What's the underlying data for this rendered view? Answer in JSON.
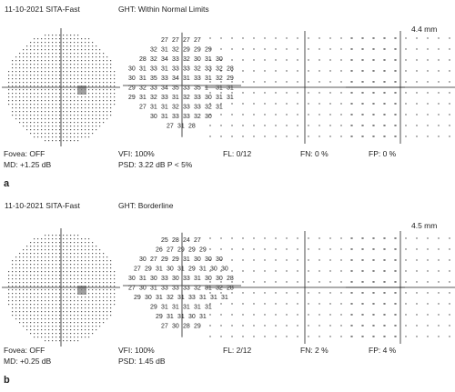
{
  "panels": [
    {
      "label": "a",
      "date_strategy": "11-10-2021 SITA-Fast",
      "ght": "GHT: Within Normal Limits",
      "size": "4.4 mm",
      "fovea": "Fovea: OFF",
      "md": "MD: +1.25 dB",
      "vfi": "VFI: 100%",
      "psd": "PSD: 3.22 dB P < 5%",
      "fl": "FL: 0/12",
      "fn": "FN: 0 %",
      "fp": "FP: 0 %",
      "threshold_rows": [
        [
          "27",
          "27",
          "27",
          "27"
        ],
        [
          "32",
          "31",
          "32",
          "29",
          "29",
          "29"
        ],
        [
          "28",
          "32",
          "34",
          "33",
          "32",
          "30",
          "31",
          "30"
        ],
        [
          "30",
          "31",
          "33",
          "31",
          "33",
          "33",
          "32",
          "33",
          "32",
          "28"
        ],
        [
          "30",
          "31",
          "35",
          "33",
          "34",
          "31",
          "33",
          "31",
          "32",
          "29"
        ],
        [
          "29",
          "32",
          "33",
          "34",
          "35",
          "33",
          "35",
          "1",
          "31",
          "31"
        ],
        [
          "29",
          "31",
          "32",
          "33",
          "31",
          "32",
          "33",
          "30",
          "31",
          "31"
        ],
        [
          "27",
          "31",
          "31",
          "32",
          "33",
          "33",
          "32",
          "31"
        ],
        [
          "30",
          "31",
          "33",
          "33",
          "32",
          "30"
        ],
        [
          "27",
          "31",
          "28"
        ]
      ]
    },
    {
      "label": "b",
      "date_strategy": "11-10-2021 SITA-Fast",
      "ght": "GHT: Borderline",
      "size": "4.5 mm",
      "fovea": "Fovea: OFF",
      "md": "MD: +0.25 dB",
      "vfi": "VFI: 100%",
      "psd": "PSD: 1.45 dB",
      "fl": "FL: 2/12",
      "fn": "FN: 2 %",
      "fp": "FP: 4 %",
      "threshold_rows": [
        [
          "25",
          "28",
          "24",
          "27"
        ],
        [
          "26",
          "27",
          "29",
          "29",
          "29"
        ],
        [
          "30",
          "27",
          "29",
          "29",
          "31",
          "30",
          "30",
          "30"
        ],
        [
          "27",
          "29",
          "31",
          "30",
          "31",
          "29",
          "31",
          "30",
          "30"
        ],
        [
          "30",
          "31",
          "30",
          "33",
          "30",
          "33",
          "31",
          "30",
          "30",
          "28"
        ],
        [
          "27",
          "30",
          "31",
          "33",
          "33",
          "33",
          "32",
          "31",
          "32",
          "28"
        ],
        [
          "29",
          "30",
          "31",
          "32",
          "31",
          "33",
          "31",
          "31",
          "31"
        ],
        [
          "29",
          "31",
          "31",
          "31",
          "31",
          "31"
        ],
        [
          "29",
          "31",
          "31",
          "30",
          "31"
        ],
        [
          "27",
          "30",
          "28",
          "29"
        ]
      ]
    }
  ]
}
